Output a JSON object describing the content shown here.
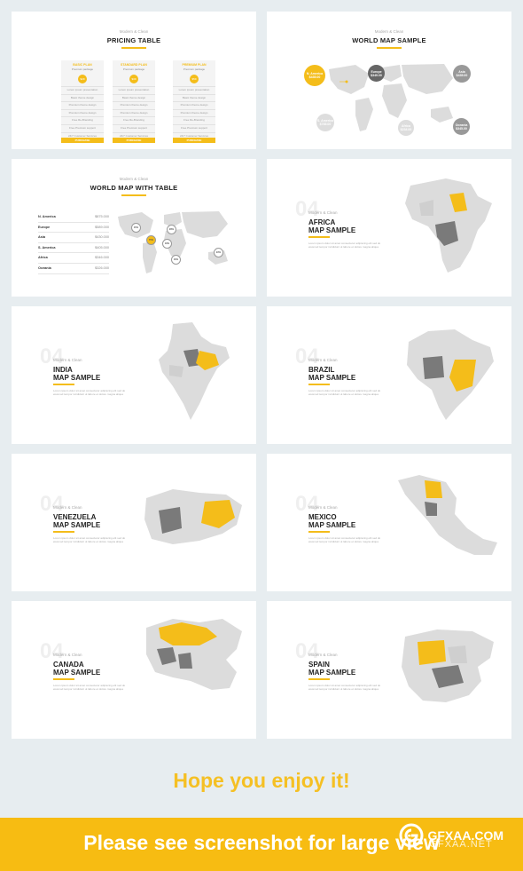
{
  "slides": {
    "pricing": {
      "kicker": "Modern & Clean",
      "title": "PRICING TABLE",
      "plans": [
        {
          "name": "BASIC PLAN",
          "sub": "Premium package",
          "price": "$29",
          "button": "PURCHASE"
        },
        {
          "name": "STANDARD PLAN",
          "sub": "Premium package",
          "price": "$39",
          "button": "PURCHASE"
        },
        {
          "name": "PREMIUM PLAN",
          "sub": "Premium package",
          "price": "$59",
          "button": "PURCHASE"
        }
      ],
      "features": [
        "Lorem ipsum presentation",
        "Basic theme design",
        "Premium theme design",
        "Premium theme design",
        "Free Re-Branding",
        "Free Premium support",
        "24/7 Customer Services"
      ]
    },
    "world_map": {
      "kicker": "Modern & Clean",
      "title": "WORLD MAP SAMPLE",
      "bubbles": [
        {
          "name": "N. America",
          "value": "$435.00"
        },
        {
          "name": "Europe",
          "value": "$349.00"
        },
        {
          "name": "Asia",
          "value": "$435.00"
        },
        {
          "name": "S. America",
          "value": "$765.00"
        },
        {
          "name": "Africa",
          "value": "$234.00"
        },
        {
          "name": "Oceania",
          "value": "$345.00"
        }
      ]
    },
    "world_table": {
      "kicker": "Modern & Clean",
      "title": "WORLD MAP WITH TABLE",
      "rows": [
        {
          "k": "N. America",
          "v": "$875.000"
        },
        {
          "k": "Europe",
          "v": "$589.000"
        },
        {
          "k": "Asia",
          "v": "$430.000"
        },
        {
          "k": "S. America",
          "v": "$405.000"
        },
        {
          "k": "Africa",
          "v": "$346.000"
        },
        {
          "k": "Oceania",
          "v": "$326.000"
        }
      ],
      "pins": [
        "45%",
        "75%",
        "28%",
        "18%",
        "46%",
        "22%"
      ]
    },
    "map_slides": [
      {
        "num": "04",
        "kicker": "Modern & Clean",
        "line1": "AFRICA",
        "line2": "MAP SAMPLE"
      },
      {
        "num": "04",
        "kicker": "Modern & Clean",
        "line1": "INDIA",
        "line2": "MAP SAMPLE"
      },
      {
        "num": "04",
        "kicker": "Modern & Clean",
        "line1": "BRAZIL",
        "line2": "MAP SAMPLE"
      },
      {
        "num": "04",
        "kicker": "Modern & Clean",
        "line1": "VENEZUELA",
        "line2": "MAP SAMPLE"
      },
      {
        "num": "04",
        "kicker": "Modern & Clean",
        "line1": "MEXICO",
        "line2": "MAP SAMPLE"
      },
      {
        "num": "04",
        "kicker": "Modern & Clean",
        "line1": "CANADA",
        "line2": "MAP SAMPLE"
      },
      {
        "num": "04",
        "kicker": "Modern & Clean",
        "line1": "SPAIN",
        "line2": "MAP SAMPLE"
      }
    ],
    "body_text": "Lorem ipsum dolor sit amet consectetur adipiscing elit sed do eiusmod tempor incididunt ut labore et dolore magna aliqua"
  },
  "hope": "Hope you enjoy it!",
  "banner": "Please see screenshot for large view",
  "watermark": {
    "text": "GFXAA.COM",
    "sub": "GFXAA.NET"
  },
  "colors": {
    "accent": "#f4bd1a",
    "dark_region": "#7a7a7a",
    "light_region": "#dcdcdc"
  }
}
